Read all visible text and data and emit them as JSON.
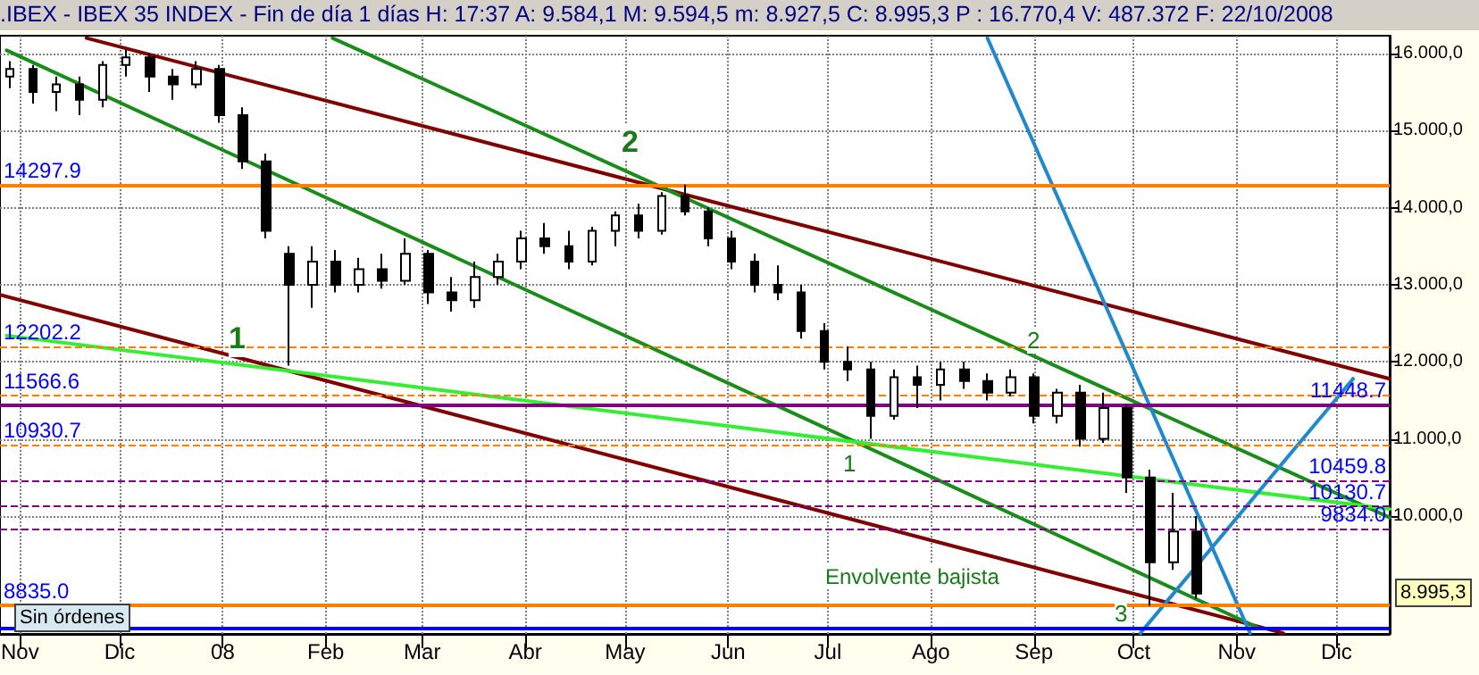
{
  "chart_data": {
    "type": "candlestick",
    "title": ".IBEX - IBEX 35 INDEX - Fin de día 1 días H: 17:37 A: 9.584,1 M: 9.594,5 m: 8.927,5 C: 8.995,3 P : 16.770,4 V: 487.372 F: 22/10/2008",
    "x": [
      "2007-10-29",
      "2007-11-05",
      "2007-11-12",
      "2007-11-19",
      "2007-11-26",
      "2007-12-03",
      "2007-12-10",
      "2007-12-17",
      "2007-12-24",
      "2007-12-31",
      "2008-01-07",
      "2008-01-14",
      "2008-01-21",
      "2008-01-28",
      "2008-02-04",
      "2008-02-11",
      "2008-02-18",
      "2008-02-25",
      "2008-03-03",
      "2008-03-10",
      "2008-03-17",
      "2008-03-24",
      "2008-03-31",
      "2008-04-07",
      "2008-04-14",
      "2008-04-21",
      "2008-04-28",
      "2008-05-05",
      "2008-05-12",
      "2008-05-19",
      "2008-05-26",
      "2008-06-02",
      "2008-06-09",
      "2008-06-16",
      "2008-06-23",
      "2008-06-30",
      "2008-07-07",
      "2008-07-14",
      "2008-07-21",
      "2008-07-28",
      "2008-08-04",
      "2008-08-11",
      "2008-08-18",
      "2008-08-25",
      "2008-09-01",
      "2008-09-08",
      "2008-09-15",
      "2008-09-22",
      "2008-09-29",
      "2008-10-06",
      "2008-10-13",
      "2008-10-20"
    ],
    "ohlc": [
      [
        15700,
        15900,
        15550,
        15800
      ],
      [
        15800,
        15850,
        15350,
        15500
      ],
      [
        15500,
        15700,
        15250,
        15600
      ],
      [
        15600,
        15700,
        15200,
        15400
      ],
      [
        15400,
        15900,
        15300,
        15850
      ],
      [
        15850,
        16050,
        15700,
        15950
      ],
      [
        15950,
        16000,
        15500,
        15700
      ],
      [
        15700,
        15800,
        15400,
        15600
      ],
      [
        15600,
        15900,
        15550,
        15800
      ],
      [
        15800,
        15850,
        15100,
        15200
      ],
      [
        15200,
        15300,
        14500,
        14600
      ],
      [
        14600,
        14700,
        13600,
        13700
      ],
      [
        13400,
        13500,
        11950,
        13000
      ],
      [
        13000,
        13500,
        12700,
        13300
      ],
      [
        13300,
        13450,
        12900,
        13000
      ],
      [
        13000,
        13350,
        12900,
        13200
      ],
      [
        13200,
        13400,
        12950,
        13050
      ],
      [
        13050,
        13600,
        13000,
        13400
      ],
      [
        13400,
        13450,
        12750,
        12900
      ],
      [
        12900,
        13100,
        12650,
        12800
      ],
      [
        12800,
        13300,
        12700,
        13100
      ],
      [
        13100,
        13400,
        13000,
        13300
      ],
      [
        13300,
        13700,
        13200,
        13600
      ],
      [
        13600,
        13800,
        13400,
        13500
      ],
      [
        13500,
        13700,
        13200,
        13300
      ],
      [
        13300,
        13750,
        13250,
        13700
      ],
      [
        13700,
        13950,
        13500,
        13900
      ],
      [
        13900,
        14050,
        13600,
        13700
      ],
      [
        13700,
        14200,
        13650,
        14150
      ],
      [
        14150,
        14297.9,
        13900,
        13950
      ],
      [
        13950,
        14000,
        13500,
        13600
      ],
      [
        13600,
        13700,
        13200,
        13300
      ],
      [
        13300,
        13400,
        12900,
        13000
      ],
      [
        13000,
        13250,
        12800,
        12900
      ],
      [
        12900,
        13000,
        12300,
        12400
      ],
      [
        12400,
        12500,
        11900,
        12000
      ],
      [
        12000,
        12200,
        11750,
        11900
      ],
      [
        11900,
        12000,
        11000,
        11300
      ],
      [
        11300,
        11900,
        11250,
        11800
      ],
      [
        11800,
        11950,
        11400,
        11700
      ],
      [
        11700,
        12000,
        11500,
        11900
      ],
      [
        11900,
        12000,
        11650,
        11750
      ],
      [
        11750,
        11850,
        11500,
        11600
      ],
      [
        11600,
        11900,
        11550,
        11800
      ],
      [
        11800,
        11850,
        11200,
        11300
      ],
      [
        11300,
        11650,
        11200,
        11600
      ],
      [
        11600,
        11700,
        10900,
        11000
      ],
      [
        11000,
        11600,
        10950,
        11400
      ],
      [
        11400,
        11448.7,
        10300,
        10500
      ],
      [
        10500,
        10600,
        8835,
        9400
      ],
      [
        9400,
        10300,
        9300,
        9800
      ],
      [
        9800,
        10000,
        8927.5,
        8995.3
      ]
    ],
    "series": [
      {
        "type": "line",
        "color": "#800000",
        "x": [
          "2007-11-21",
          "2008-12-17"
        ],
        "values": [
          16200,
          11780
        ]
      },
      {
        "type": "line",
        "color": "#800000",
        "x": [
          "2007-10-26",
          "2008-11-15"
        ],
        "values": [
          12870,
          8480
        ]
      },
      {
        "type": "line",
        "color": "#1a8c1a",
        "x": [
          "2008-02-03",
          "2008-12-17"
        ],
        "values": [
          16200,
          9980
        ]
      },
      {
        "type": "line",
        "color": "#1a8c1a",
        "x": [
          "2007-10-28",
          "2008-11-07"
        ],
        "values": [
          16040,
          8560
        ]
      },
      {
        "type": "line",
        "color": "#33ee33",
        "x": [
          "2007-10-28",
          "2008-12-17"
        ],
        "values": [
          12340,
          10090
        ]
      },
      {
        "type": "line",
        "color": "#2288cc",
        "x": [
          "2008-08-18",
          "2008-11-05"
        ],
        "values": [
          16200,
          8480
        ]
      },
      {
        "type": "line",
        "color": "#2288cc",
        "x": [
          "2008-10-03",
          "2008-12-06"
        ],
        "values": [
          8480,
          11780
        ]
      }
    ],
    "ref_lines": [
      {
        "axis": "y",
        "value": 14297.9,
        "label": "14297.9",
        "color": "#ff8000",
        "line_style": "solid"
      },
      {
        "axis": "y",
        "value": 12202.2,
        "label": "12202.2",
        "color": "#ff8000",
        "line_style": "dashed"
      },
      {
        "axis": "y",
        "value": 11566.6,
        "label": "11566.6",
        "color": "#ff8000",
        "line_style": "dashed"
      },
      {
        "axis": "y",
        "value": 10930.7,
        "label": "10930.7",
        "color": "#ff8000",
        "line_style": "dashed"
      },
      {
        "axis": "y",
        "value": 8835.0,
        "label": "8835.0",
        "color": "#ff8000",
        "line_style": "solid"
      },
      {
        "axis": "y",
        "value": 11448.7,
        "label": "11448.7",
        "color": "#800080",
        "line_style": "solid"
      },
      {
        "axis": "y",
        "value": 10459.8,
        "label": "10459.8",
        "color": "#800080",
        "line_style": "dashed"
      },
      {
        "axis": "y",
        "value": 10130.7,
        "label": "10130.7",
        "color": "#800080",
        "line_style": "dashed"
      },
      {
        "axis": "y",
        "value": 9834.0,
        "label": "9834.0",
        "color": "#800080",
        "line_style": "dashed"
      },
      {
        "axis": "y",
        "value": 8540,
        "color": "#0000ff",
        "line_style": "solid"
      }
    ],
    "annotations": [
      "1",
      "2",
      "1",
      "2",
      "3",
      "Envolvente bajista",
      "8.995,3",
      "Sin órdenes"
    ],
    "xlim": [
      "2007-10-26",
      "2008-12-17"
    ],
    "xticks": [
      {
        "value": "2007-11-01",
        "label": "Nov"
      },
      {
        "value": "2007-12-01",
        "label": "Dic"
      },
      {
        "value": "2008-01-01",
        "label": "08"
      },
      {
        "value": "2008-02-01",
        "label": "Feb"
      },
      {
        "value": "2008-03-01",
        "label": "Mar"
      },
      {
        "value": "2008-04-01",
        "label": "Abr"
      },
      {
        "value": "2008-05-01",
        "label": "May"
      },
      {
        "value": "2008-06-01",
        "label": "Jun"
      },
      {
        "value": "2008-07-01",
        "label": "Jul"
      },
      {
        "value": "2008-08-01",
        "label": "Ago"
      },
      {
        "value": "2008-09-01",
        "label": "Sep"
      },
      {
        "value": "2008-10-01",
        "label": "Oct"
      },
      {
        "value": "2008-11-01",
        "label": "Nov"
      },
      {
        "value": "2008-12-01",
        "label": "Dic"
      }
    ],
    "ylim": [
      8470,
      16230
    ],
    "yticks": [
      {
        "value": 10000,
        "label": "10.000,0"
      },
      {
        "value": 11000,
        "label": "11.000,0"
      },
      {
        "value": 12000,
        "label": "12.000,0"
      },
      {
        "value": 13000,
        "label": "13.000,0"
      },
      {
        "value": 14000,
        "label": "14.000,0"
      },
      {
        "value": 15000,
        "label": "15.000,0"
      },
      {
        "value": 16000,
        "label": "16.000,0"
      }
    ],
    "grid": true,
    "marker": "none"
  }
}
